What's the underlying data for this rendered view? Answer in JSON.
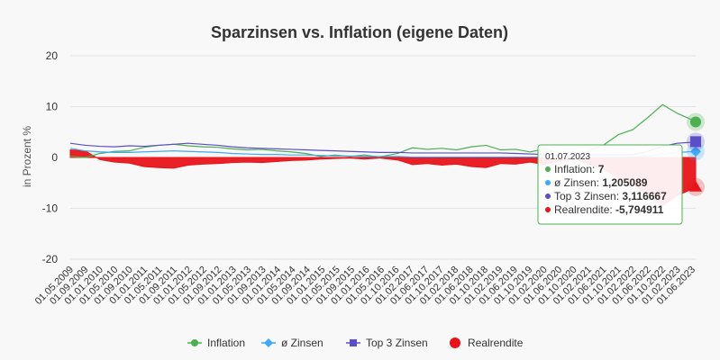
{
  "chart_data": {
    "type": "line",
    "title": "Sparzinsen vs. Inflation (eigene Daten)",
    "ylabel": "in Prozent %",
    "ylim": [
      -20,
      20
    ],
    "yticks": [
      20,
      10,
      0,
      -10,
      -20
    ],
    "grid": true,
    "legend_position": "bottom",
    "x_tick_labels": [
      "01.05.2009",
      "01.09.2009",
      "01.01.2010",
      "01.05.2010",
      "01.09.2010",
      "01.01.2011",
      "01.05.2011",
      "01.09.2011",
      "01.01.2012",
      "01.05.2012",
      "01.09.2012",
      "01.01.2013",
      "01.05.2013",
      "01.09.2013",
      "01.01.2014",
      "01.05.2014",
      "01.09.2014",
      "01.01.2015",
      "01.05.2015",
      "01.09.2015",
      "01.01.2016",
      "01.05.2016",
      "01.10.2016",
      "01.02.2017",
      "01.06.2017",
      "01.10.2017",
      "01.02.2018",
      "01.06.2018",
      "01.10.2018",
      "01.02.2019",
      "01.06.2019",
      "01.10.2019",
      "01.02.2020",
      "01.06.2020",
      "01.10.2020",
      "01.02.2021",
      "01.06.2021",
      "01.10.2021",
      "01.02.2022",
      "01.06.2022",
      "01.10.2022",
      "01.02.2023",
      "01.06.2023"
    ],
    "x": [
      2009.33,
      2009.67,
      2010.0,
      2010.33,
      2010.67,
      2011.0,
      2011.33,
      2011.67,
      2012.0,
      2012.33,
      2012.67,
      2013.0,
      2013.33,
      2013.67,
      2014.0,
      2014.33,
      2014.67,
      2015.0,
      2015.33,
      2015.67,
      2016.0,
      2016.33,
      2016.75,
      2017.08,
      2017.42,
      2017.75,
      2018.08,
      2018.42,
      2018.75,
      2019.08,
      2019.42,
      2019.75,
      2020.08,
      2020.42,
      2020.75,
      2021.08,
      2021.42,
      2021.75,
      2022.08,
      2022.42,
      2022.75,
      2023.08,
      2023.42,
      2023.5
    ],
    "series": [
      {
        "name": "Inflation",
        "color": "#4caf50",
        "marker": "circle",
        "values": [
          0.2,
          0.0,
          0.8,
          1.2,
          1.3,
          2.0,
          2.4,
          2.6,
          2.3,
          2.1,
          2.0,
          1.7,
          1.5,
          1.6,
          1.3,
          1.1,
          0.8,
          0.2,
          0.5,
          0.2,
          0.5,
          0.1,
          0.8,
          1.9,
          1.6,
          1.8,
          1.5,
          2.1,
          2.4,
          1.5,
          1.6,
          1.1,
          1.7,
          0.9,
          -0.2,
          1.4,
          2.5,
          4.5,
          5.5,
          7.9,
          10.4,
          8.7,
          7.4,
          7.0
        ]
      },
      {
        "name": "ø Zinsen",
        "color": "#3fa9f5",
        "marker": "diamond",
        "values": [
          1.8,
          1.3,
          1.1,
          1.0,
          1.0,
          1.1,
          1.2,
          1.3,
          1.2,
          1.1,
          1.0,
          0.8,
          0.7,
          0.6,
          0.6,
          0.5,
          0.5,
          0.4,
          0.3,
          0.3,
          0.2,
          0.2,
          0.2,
          0.1,
          0.1,
          0.1,
          0.1,
          0.1,
          0.1,
          0.1,
          0.1,
          0.1,
          0.1,
          0.1,
          0.1,
          0.1,
          0.1,
          0.1,
          0.1,
          0.3,
          0.7,
          1.0,
          1.15,
          1.205089
        ]
      },
      {
        "name": "Top 3 Zinsen",
        "color": "#5a4fc7",
        "marker": "square",
        "values": [
          2.8,
          2.4,
          2.2,
          2.1,
          2.3,
          2.2,
          2.4,
          2.6,
          2.8,
          2.6,
          2.4,
          2.1,
          1.9,
          1.8,
          1.7,
          1.6,
          1.5,
          1.4,
          1.3,
          1.2,
          1.1,
          1.0,
          1.0,
          0.9,
          0.9,
          0.9,
          0.9,
          0.9,
          0.9,
          0.9,
          0.8,
          0.7,
          0.6,
          0.5,
          0.5,
          0.5,
          0.5,
          0.5,
          0.6,
          1.2,
          2.2,
          2.8,
          3.0,
          3.116667
        ]
      },
      {
        "name": "Realrendite",
        "color": "#e8141a",
        "marker": "circle",
        "kind": "area",
        "values": [
          1.5,
          1.3,
          -0.4,
          -0.9,
          -1.1,
          -1.8,
          -2.0,
          -2.1,
          -1.5,
          -1.3,
          -1.2,
          -1.0,
          -0.9,
          -1.0,
          -0.8,
          -0.6,
          -0.5,
          -0.3,
          -0.2,
          -0.1,
          -0.3,
          -0.1,
          -0.5,
          -1.4,
          -1.2,
          -1.5,
          -1.3,
          -1.8,
          -2.0,
          -1.2,
          -1.3,
          -0.9,
          -1.4,
          -0.7,
          -0.2,
          -1.3,
          -2.3,
          -4.2,
          -5.2,
          -7.4,
          -9.5,
          -7.5,
          -6.2,
          -5.794911
        ]
      }
    ],
    "tooltip": {
      "date": "01.07.2023",
      "rows": [
        {
          "label": "Inflation",
          "value": "7",
          "color": "#4caf50"
        },
        {
          "label": "ø Zinsen",
          "value": "1,205089",
          "color": "#3fa9f5"
        },
        {
          "label": "Top 3 Zinsen",
          "value": "3,116667",
          "color": "#5a4fc7"
        },
        {
          "label": "Realrendite",
          "value": "-5,794911",
          "color": "#e8141a"
        }
      ]
    }
  }
}
